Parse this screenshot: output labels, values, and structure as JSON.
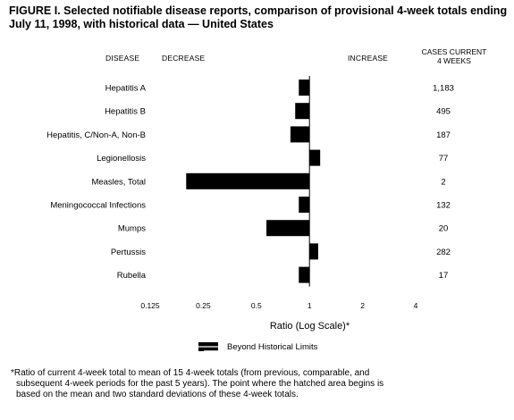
{
  "title": "FIGURE I. Selected notifiable disease reports, comparison of provisional 4-week totals ending July 11, 1998, with historical data — United States",
  "headers": {
    "disease": "DISEASE",
    "decrease": "DECREASE",
    "increase": "INCREASE",
    "cases_line1": "CASES CURRENT",
    "cases_line2": "4 WEEKS"
  },
  "legend_label": "Beyond Historical Limits",
  "footnote": {
    "line1": "*Ratio of current 4-week total to mean of 15 4-week totals (from previous, comparable, and",
    "line2": "subsequent 4-week periods for the past 5 years). The point where the hatched area begins is",
    "line3": "based on the mean and two standard deviations of these 4-week totals."
  },
  "chart_data": {
    "type": "bar",
    "orientation": "horizontal",
    "scale": "log2",
    "baseline": 1,
    "xlim": [
      0.125,
      4
    ],
    "xlabel": "Ratio (Log Scale)*",
    "xticks": [
      0.125,
      0.25,
      0.5,
      1,
      2,
      4
    ],
    "xtick_labels": [
      "0.125",
      "0.25",
      "0.5",
      "1",
      "2",
      "4"
    ],
    "categories": [
      "Hepatitis A",
      "Hepatitis B",
      "Hepatitis, C/Non-A, Non-B",
      "Legionellosis",
      "Measles, Total",
      "Meningococcal Infections",
      "Mumps",
      "Pertussis",
      "Rubella"
    ],
    "values": [
      0.87,
      0.83,
      0.78,
      1.15,
      0.2,
      0.87,
      0.57,
      1.12,
      0.87
    ],
    "cases_current_4_weeks": [
      "1,183",
      "495",
      "187",
      "77",
      "2",
      "132",
      "20",
      "282",
      "17"
    ],
    "bar_color": "#000000"
  }
}
